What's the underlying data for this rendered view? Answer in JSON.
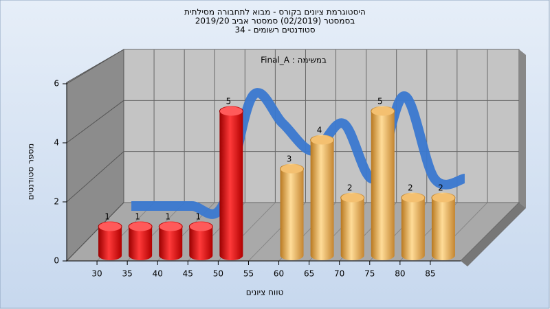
{
  "chart_data": {
    "type": "bar3d",
    "title": "היסטוגרמת ציונים בקורס - מבוא לתחבורה מסילתית",
    "subtitle": "בסמסטר  (02/2019)  סמסטר אביב 2019/20",
    "subtitle2": "34 - סטודנטים רשומים",
    "annotation": "Final_A : במשימה",
    "x_label": "טווח ציונים",
    "y_label": "מספר סטודנטים",
    "x": [
      30,
      35,
      40,
      45,
      50,
      55,
      60,
      65,
      70,
      75,
      80,
      85
    ],
    "values": [
      1,
      1,
      1,
      1,
      5,
      0,
      3,
      4,
      2,
      5,
      2,
      2
    ],
    "colors": [
      "red",
      "red",
      "red",
      "red",
      "red",
      "red",
      "gold",
      "gold",
      "gold",
      "gold",
      "gold",
      "gold"
    ],
    "curve_values": [
      1,
      1,
      1,
      1,
      5,
      4,
      3,
      4,
      2,
      5,
      2,
      2
    ],
    "curve_color": "#3a78d0",
    "xlim": [
      25,
      90
    ],
    "xticks": [
      30,
      35,
      40,
      45,
      50,
      55,
      60,
      65,
      70,
      75,
      80,
      85
    ],
    "ylim": [
      0,
      6
    ],
    "yticks": [
      0,
      2,
      4,
      6
    ],
    "grid": true
  }
}
